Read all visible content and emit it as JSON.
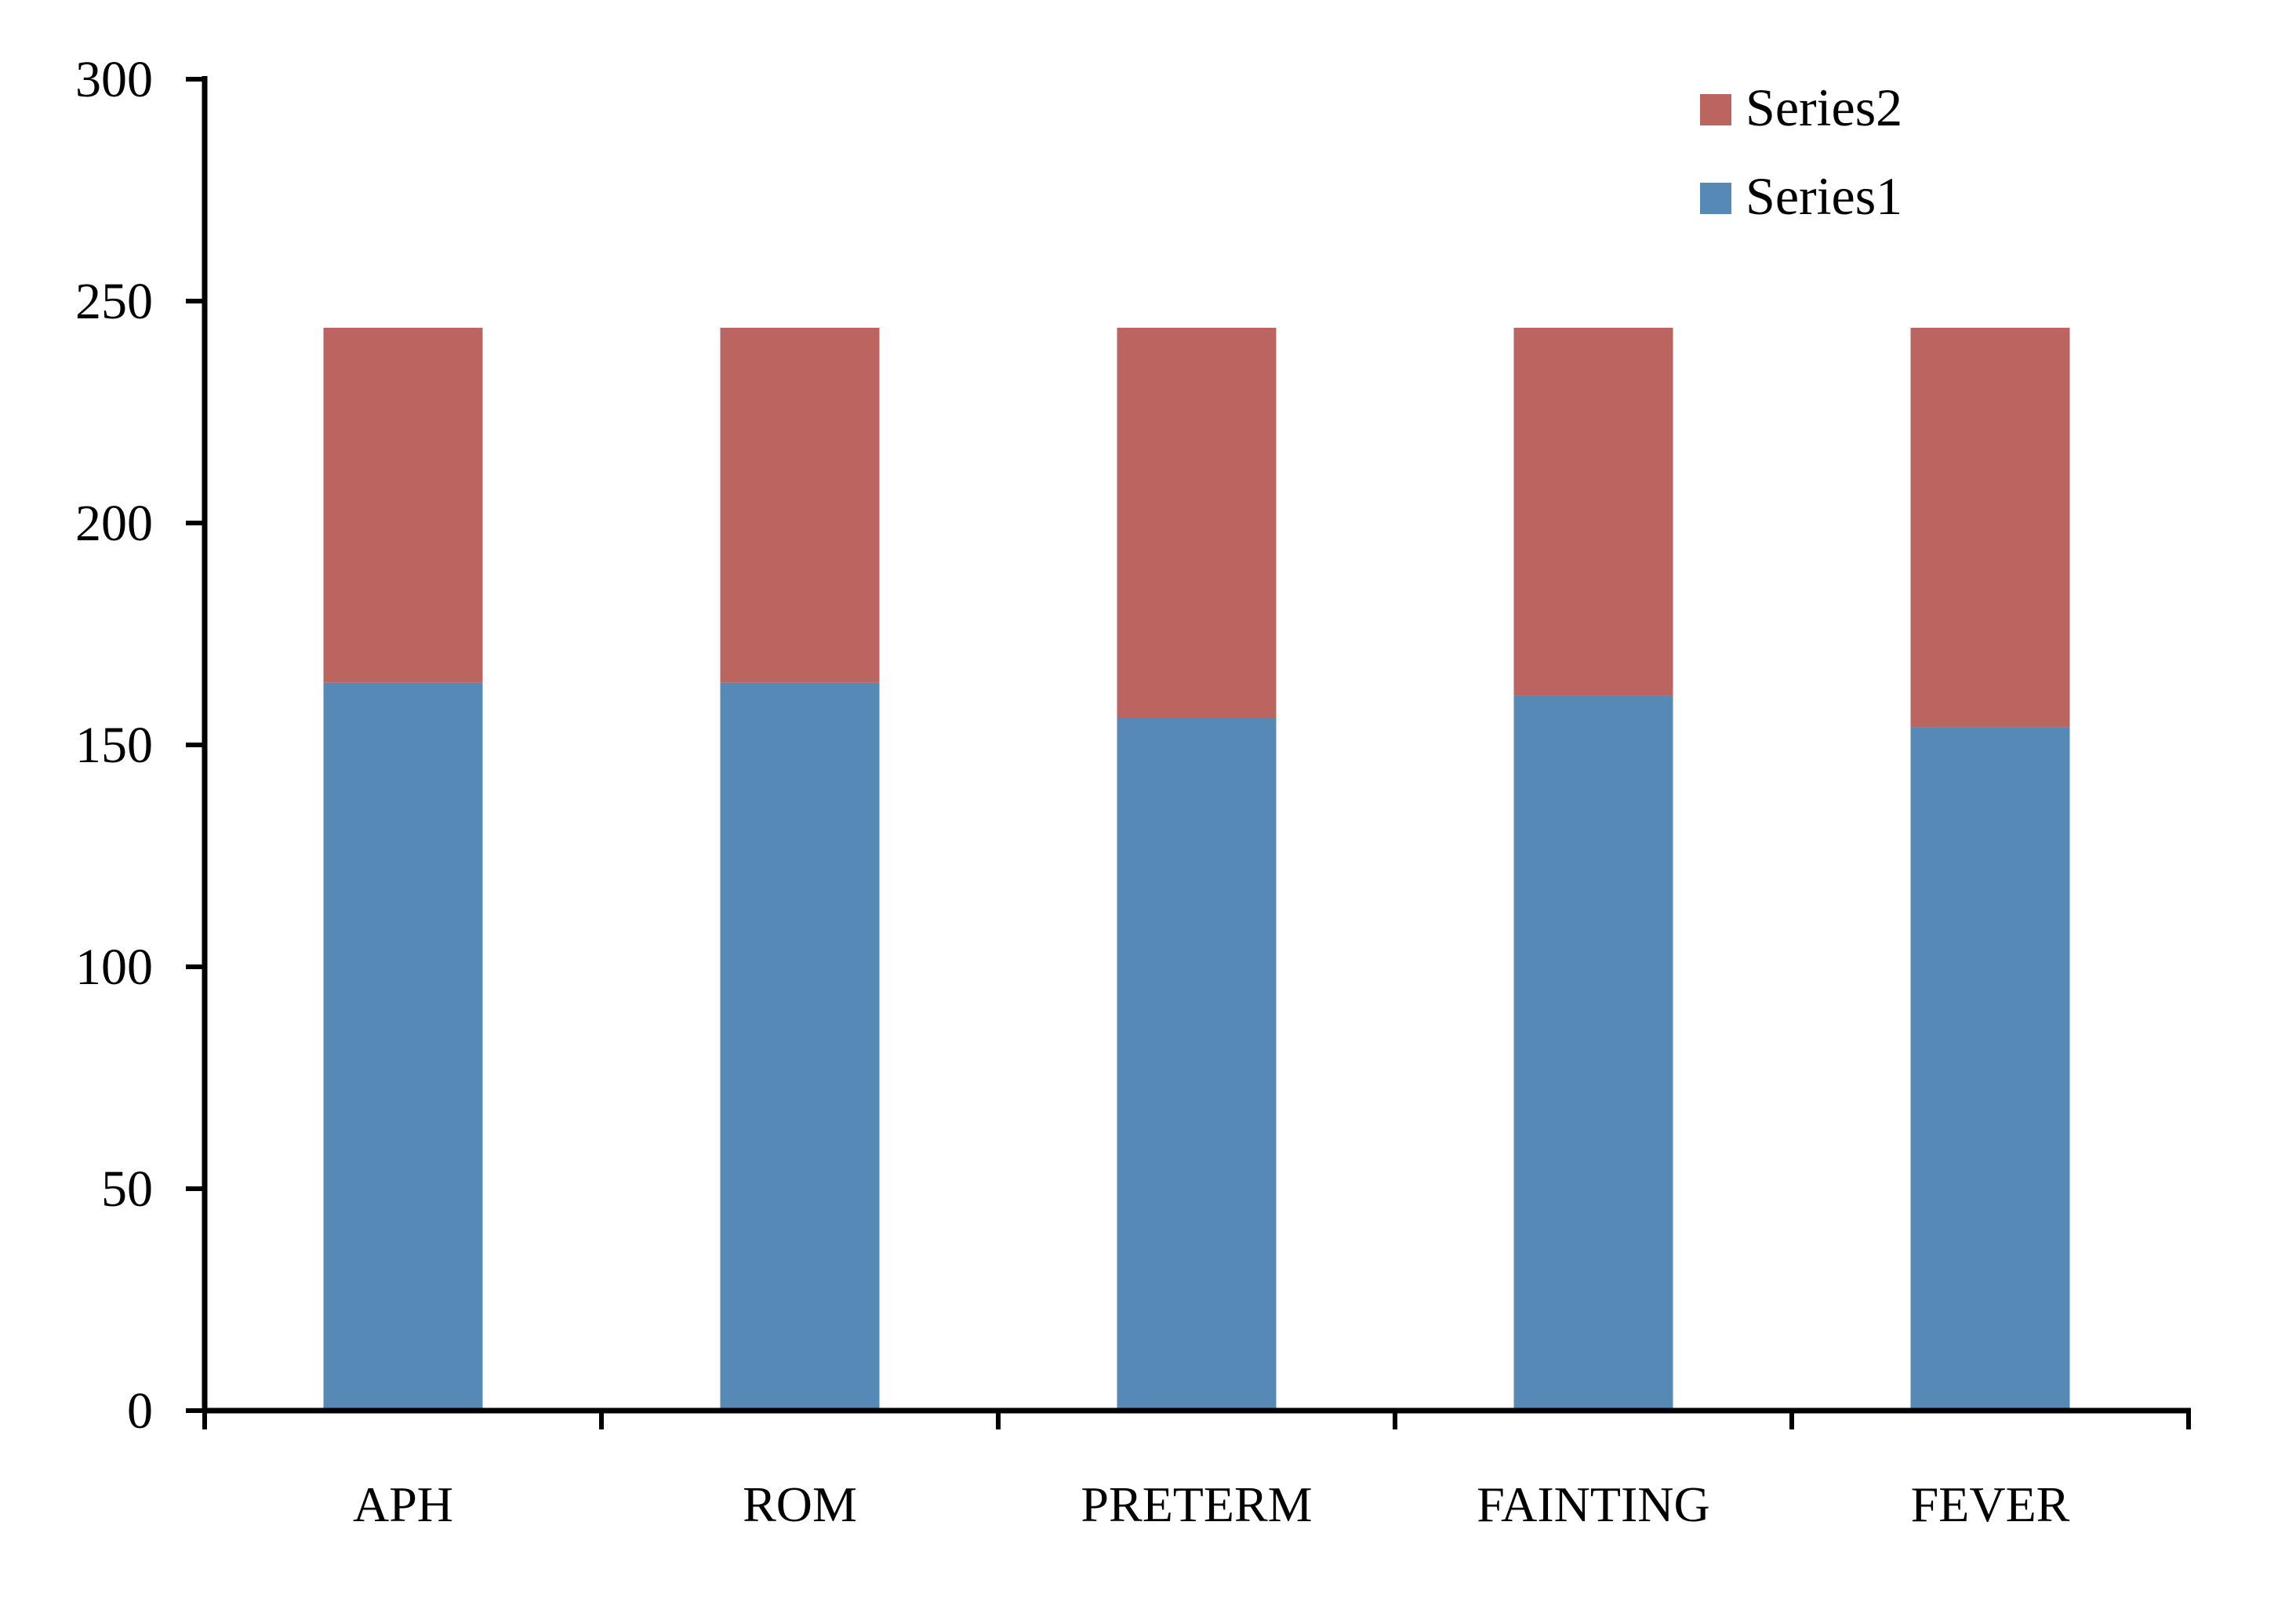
{
  "chart_data": {
    "type": "bar",
    "stacked": true,
    "categories": [
      "APH",
      "ROM",
      "PRETERM",
      "FAINTING",
      "FEVER"
    ],
    "series": [
      {
        "name": "Series1",
        "values": [
          164,
          164,
          156,
          161,
          154
        ],
        "color": "#5689b5"
      },
      {
        "name": "Series2",
        "values": [
          80,
          80,
          88,
          83,
          90
        ],
        "color": "#bb6460"
      }
    ],
    "yticks": [
      "0",
      "50",
      "100",
      "150",
      "200",
      "250",
      "300"
    ],
    "ylim": [
      0,
      300
    ],
    "title": "",
    "xlabel": "",
    "ylabel": "",
    "grid": false,
    "legend_position": "top-right",
    "legend_order": [
      "Series2",
      "Series1"
    ]
  }
}
